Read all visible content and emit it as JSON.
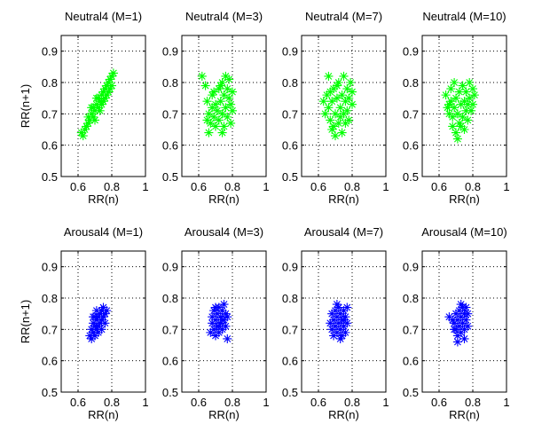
{
  "chart_data": [
    {
      "type": "scatter",
      "title": "Neutral4 (M=1)",
      "xlabel": "RR(n)",
      "ylabel": "RR(n+1)",
      "xlim": [
        0.5,
        1
      ],
      "ylim": [
        0.5,
        0.95
      ],
      "xticks": [
        "0.6",
        "0.8",
        "1"
      ],
      "yticks": [
        "0.5",
        "0.6",
        "0.7",
        "0.8",
        "0.9"
      ],
      "grid": true,
      "marker": "*",
      "color": "#00ff00",
      "points": [
        [
          0.62,
          0.64
        ],
        [
          0.63,
          0.63
        ],
        [
          0.64,
          0.65
        ],
        [
          0.65,
          0.66
        ],
        [
          0.66,
          0.67
        ],
        [
          0.66,
          0.69
        ],
        [
          0.67,
          0.68
        ],
        [
          0.68,
          0.7
        ],
        [
          0.69,
          0.69
        ],
        [
          0.69,
          0.72
        ],
        [
          0.7,
          0.71
        ],
        [
          0.71,
          0.73
        ],
        [
          0.72,
          0.72
        ],
        [
          0.72,
          0.75
        ],
        [
          0.73,
          0.74
        ],
        [
          0.74,
          0.76
        ],
        [
          0.74,
          0.73
        ],
        [
          0.75,
          0.77
        ],
        [
          0.76,
          0.78
        ],
        [
          0.76,
          0.75
        ],
        [
          0.77,
          0.79
        ],
        [
          0.78,
          0.8
        ],
        [
          0.78,
          0.77
        ],
        [
          0.79,
          0.81
        ],
        [
          0.8,
          0.82
        ],
        [
          0.8,
          0.79
        ],
        [
          0.81,
          0.83
        ],
        [
          0.7,
          0.68
        ],
        [
          0.73,
          0.71
        ],
        [
          0.75,
          0.74
        ],
        [
          0.77,
          0.76
        ],
        [
          0.68,
          0.72
        ],
        [
          0.71,
          0.75
        ],
        [
          0.79,
          0.78
        ]
      ]
    },
    {
      "type": "scatter",
      "title": "Neutral4 (M=3)",
      "xlabel": "RR(n)",
      "ylabel": "",
      "xlim": [
        0.5,
        1
      ],
      "ylim": [
        0.5,
        0.95
      ],
      "xticks": [
        "0.6",
        "0.8",
        "1"
      ],
      "yticks": [
        "0.5",
        "0.6",
        "0.7",
        "0.8",
        "0.9"
      ],
      "grid": true,
      "marker": "*",
      "color": "#00ff00",
      "points": [
        [
          0.62,
          0.82
        ],
        [
          0.64,
          0.79
        ],
        [
          0.65,
          0.74
        ],
        [
          0.66,
          0.7
        ],
        [
          0.66,
          0.64
        ],
        [
          0.67,
          0.67
        ],
        [
          0.68,
          0.72
        ],
        [
          0.68,
          0.76
        ],
        [
          0.69,
          0.69
        ],
        [
          0.7,
          0.73
        ],
        [
          0.7,
          0.66
        ],
        [
          0.71,
          0.71
        ],
        [
          0.72,
          0.78
        ],
        [
          0.72,
          0.68
        ],
        [
          0.73,
          0.74
        ],
        [
          0.74,
          0.7
        ],
        [
          0.74,
          0.8
        ],
        [
          0.75,
          0.76
        ],
        [
          0.75,
          0.66
        ],
        [
          0.76,
          0.72
        ],
        [
          0.76,
          0.82
        ],
        [
          0.77,
          0.78
        ],
        [
          0.77,
          0.69
        ],
        [
          0.78,
          0.75
        ],
        [
          0.78,
          0.81
        ],
        [
          0.79,
          0.73
        ],
        [
          0.79,
          0.67
        ],
        [
          0.8,
          0.77
        ],
        [
          0.8,
          0.71
        ],
        [
          0.69,
          0.77
        ],
        [
          0.65,
          0.68
        ],
        [
          0.73,
          0.79
        ],
        [
          0.74,
          0.64
        ]
      ]
    },
    {
      "type": "scatter",
      "title": "Neutral4 (M=7)",
      "xlabel": "RR(n)",
      "ylabel": "",
      "xlim": [
        0.5,
        1
      ],
      "ylim": [
        0.5,
        0.95
      ],
      "xticks": [
        "0.6",
        "0.8",
        "1"
      ],
      "yticks": [
        "0.5",
        "0.6",
        "0.7",
        "0.8",
        "0.9"
      ],
      "grid": true,
      "marker": "*",
      "color": "#00ff00",
      "points": [
        [
          0.63,
          0.74
        ],
        [
          0.64,
          0.7
        ],
        [
          0.65,
          0.76
        ],
        [
          0.66,
          0.72
        ],
        [
          0.66,
          0.82
        ],
        [
          0.67,
          0.68
        ],
        [
          0.68,
          0.74
        ],
        [
          0.68,
          0.65
        ],
        [
          0.69,
          0.78
        ],
        [
          0.7,
          0.7
        ],
        [
          0.7,
          0.63
        ],
        [
          0.71,
          0.75
        ],
        [
          0.72,
          0.67
        ],
        [
          0.72,
          0.8
        ],
        [
          0.73,
          0.72
        ],
        [
          0.74,
          0.76
        ],
        [
          0.74,
          0.64
        ],
        [
          0.75,
          0.7
        ],
        [
          0.75,
          0.82
        ],
        [
          0.76,
          0.74
        ],
        [
          0.76,
          0.67
        ],
        [
          0.77,
          0.78
        ],
        [
          0.77,
          0.71
        ],
        [
          0.78,
          0.75
        ],
        [
          0.78,
          0.68
        ],
        [
          0.79,
          0.8
        ],
        [
          0.8,
          0.73
        ],
        [
          0.8,
          0.77
        ],
        [
          0.69,
          0.66
        ],
        [
          0.71,
          0.79
        ],
        [
          0.67,
          0.77
        ],
        [
          0.73,
          0.69
        ]
      ]
    },
    {
      "type": "scatter",
      "title": "Neutral4 (M=10)",
      "xlabel": "RR(n)",
      "ylabel": "",
      "xlim": [
        0.5,
        1
      ],
      "ylim": [
        0.5,
        0.95
      ],
      "xticks": [
        "0.6",
        "0.8",
        "1"
      ],
      "yticks": [
        "0.5",
        "0.6",
        "0.7",
        "0.8",
        "0.9"
      ],
      "grid": true,
      "marker": "*",
      "color": "#00ff00",
      "points": [
        [
          0.64,
          0.76
        ],
        [
          0.65,
          0.72
        ],
        [
          0.66,
          0.7
        ],
        [
          0.67,
          0.74
        ],
        [
          0.67,
          0.78
        ],
        [
          0.68,
          0.69
        ],
        [
          0.68,
          0.66
        ],
        [
          0.69,
          0.72
        ],
        [
          0.7,
          0.75
        ],
        [
          0.7,
          0.64
        ],
        [
          0.71,
          0.7
        ],
        [
          0.72,
          0.77
        ],
        [
          0.72,
          0.67
        ],
        [
          0.73,
          0.73
        ],
        [
          0.74,
          0.79
        ],
        [
          0.74,
          0.69
        ],
        [
          0.75,
          0.74
        ],
        [
          0.75,
          0.65
        ],
        [
          0.76,
          0.71
        ],
        [
          0.76,
          0.77
        ],
        [
          0.77,
          0.73
        ],
        [
          0.78,
          0.8
        ],
        [
          0.78,
          0.75
        ],
        [
          0.79,
          0.71
        ],
        [
          0.8,
          0.78
        ],
        [
          0.8,
          0.73
        ],
        [
          0.81,
          0.76
        ],
        [
          0.69,
          0.8
        ],
        [
          0.71,
          0.62
        ],
        [
          0.73,
          0.66
        ],
        [
          0.66,
          0.73
        ],
        [
          0.77,
          0.68
        ]
      ]
    },
    {
      "type": "scatter",
      "title": "Arousal4 (M=1)",
      "xlabel": "RR(n)",
      "ylabel": "RR(n+1)",
      "xlim": [
        0.5,
        1
      ],
      "ylim": [
        0.5,
        0.95
      ],
      "xticks": [
        "0.6",
        "0.8",
        "1"
      ],
      "yticks": [
        "0.5",
        "0.6",
        "0.7",
        "0.8",
        "0.9"
      ],
      "grid": true,
      "marker": "*",
      "color": "#0000ff",
      "points": [
        [
          0.67,
          0.68
        ],
        [
          0.68,
          0.7
        ],
        [
          0.68,
          0.67
        ],
        [
          0.69,
          0.72
        ],
        [
          0.69,
          0.69
        ],
        [
          0.7,
          0.71
        ],
        [
          0.7,
          0.68
        ],
        [
          0.71,
          0.73
        ],
        [
          0.71,
          0.7
        ],
        [
          0.72,
          0.74
        ],
        [
          0.72,
          0.71
        ],
        [
          0.73,
          0.75
        ],
        [
          0.73,
          0.72
        ],
        [
          0.74,
          0.76
        ],
        [
          0.74,
          0.73
        ],
        [
          0.75,
          0.77
        ],
        [
          0.75,
          0.74
        ],
        [
          0.76,
          0.75
        ],
        [
          0.76,
          0.72
        ],
        [
          0.77,
          0.76
        ],
        [
          0.7,
          0.74
        ],
        [
          0.72,
          0.69
        ],
        [
          0.74,
          0.7
        ],
        [
          0.71,
          0.76
        ],
        [
          0.69,
          0.74
        ]
      ]
    },
    {
      "type": "scatter",
      "title": "Arousal4 (M=3)",
      "xlabel": "RR(n)",
      "ylabel": "",
      "xlim": [
        0.5,
        1
      ],
      "ylim": [
        0.5,
        0.95
      ],
      "xticks": [
        "0.6",
        "0.8",
        "1"
      ],
      "yticks": [
        "0.5",
        "0.6",
        "0.7",
        "0.8",
        "0.9"
      ],
      "grid": true,
      "marker": "*",
      "color": "#0000ff",
      "points": [
        [
          0.67,
          0.69
        ],
        [
          0.68,
          0.72
        ],
        [
          0.68,
          0.74
        ],
        [
          0.69,
          0.7
        ],
        [
          0.69,
          0.76
        ],
        [
          0.7,
          0.68
        ],
        [
          0.7,
          0.73
        ],
        [
          0.71,
          0.71
        ],
        [
          0.71,
          0.75
        ],
        [
          0.72,
          0.77
        ],
        [
          0.72,
          0.69
        ],
        [
          0.73,
          0.72
        ],
        [
          0.73,
          0.74
        ],
        [
          0.74,
          0.76
        ],
        [
          0.74,
          0.7
        ],
        [
          0.75,
          0.73
        ],
        [
          0.75,
          0.78
        ],
        [
          0.76,
          0.71
        ],
        [
          0.76,
          0.75
        ],
        [
          0.77,
          0.74
        ],
        [
          0.77,
          0.67
        ],
        [
          0.7,
          0.77
        ],
        [
          0.72,
          0.71
        ],
        [
          0.74,
          0.73
        ]
      ]
    },
    {
      "type": "scatter",
      "title": "Arousal4 (M=7)",
      "xlabel": "RR(n)",
      "ylabel": "",
      "xlim": [
        0.5,
        1
      ],
      "ylim": [
        0.5,
        0.95
      ],
      "xticks": [
        "0.6",
        "0.8",
        "1"
      ],
      "yticks": [
        "0.5",
        "0.6",
        "0.7",
        "0.8",
        "0.9"
      ],
      "grid": true,
      "marker": "*",
      "color": "#0000ff",
      "points": [
        [
          0.67,
          0.72
        ],
        [
          0.68,
          0.7
        ],
        [
          0.68,
          0.75
        ],
        [
          0.69,
          0.73
        ],
        [
          0.7,
          0.71
        ],
        [
          0.7,
          0.76
        ],
        [
          0.71,
          0.69
        ],
        [
          0.71,
          0.74
        ],
        [
          0.72,
          0.72
        ],
        [
          0.72,
          0.77
        ],
        [
          0.73,
          0.7
        ],
        [
          0.73,
          0.75
        ],
        [
          0.74,
          0.73
        ],
        [
          0.74,
          0.68
        ],
        [
          0.75,
          0.71
        ],
        [
          0.75,
          0.76
        ],
        [
          0.76,
          0.74
        ],
        [
          0.76,
          0.69
        ],
        [
          0.77,
          0.72
        ],
        [
          0.77,
          0.77
        ],
        [
          0.69,
          0.68
        ],
        [
          0.71,
          0.78
        ],
        [
          0.73,
          0.67
        ],
        [
          0.75,
          0.73
        ]
      ]
    },
    {
      "type": "scatter",
      "title": "Arousal4 (M=10)",
      "xlabel": "RR(n)",
      "ylabel": "",
      "xlim": [
        0.5,
        1
      ],
      "ylim": [
        0.5,
        0.95
      ],
      "xticks": [
        "0.6",
        "0.8",
        "1"
      ],
      "yticks": [
        "0.5",
        "0.6",
        "0.7",
        "0.8",
        "0.9"
      ],
      "grid": true,
      "marker": "*",
      "color": "#0000ff",
      "points": [
        [
          0.66,
          0.74
        ],
        [
          0.68,
          0.73
        ],
        [
          0.69,
          0.72
        ],
        [
          0.7,
          0.75
        ],
        [
          0.7,
          0.7
        ],
        [
          0.71,
          0.73
        ],
        [
          0.71,
          0.68
        ],
        [
          0.72,
          0.76
        ],
        [
          0.72,
          0.71
        ],
        [
          0.73,
          0.74
        ],
        [
          0.73,
          0.69
        ],
        [
          0.74,
          0.77
        ],
        [
          0.74,
          0.72
        ],
        [
          0.75,
          0.75
        ],
        [
          0.75,
          0.7
        ],
        [
          0.76,
          0.73
        ],
        [
          0.76,
          0.77
        ],
        [
          0.77,
          0.71
        ],
        [
          0.77,
          0.75
        ],
        [
          0.71,
          0.66
        ],
        [
          0.73,
          0.78
        ],
        [
          0.75,
          0.67
        ],
        [
          0.69,
          0.7
        ]
      ]
    }
  ]
}
